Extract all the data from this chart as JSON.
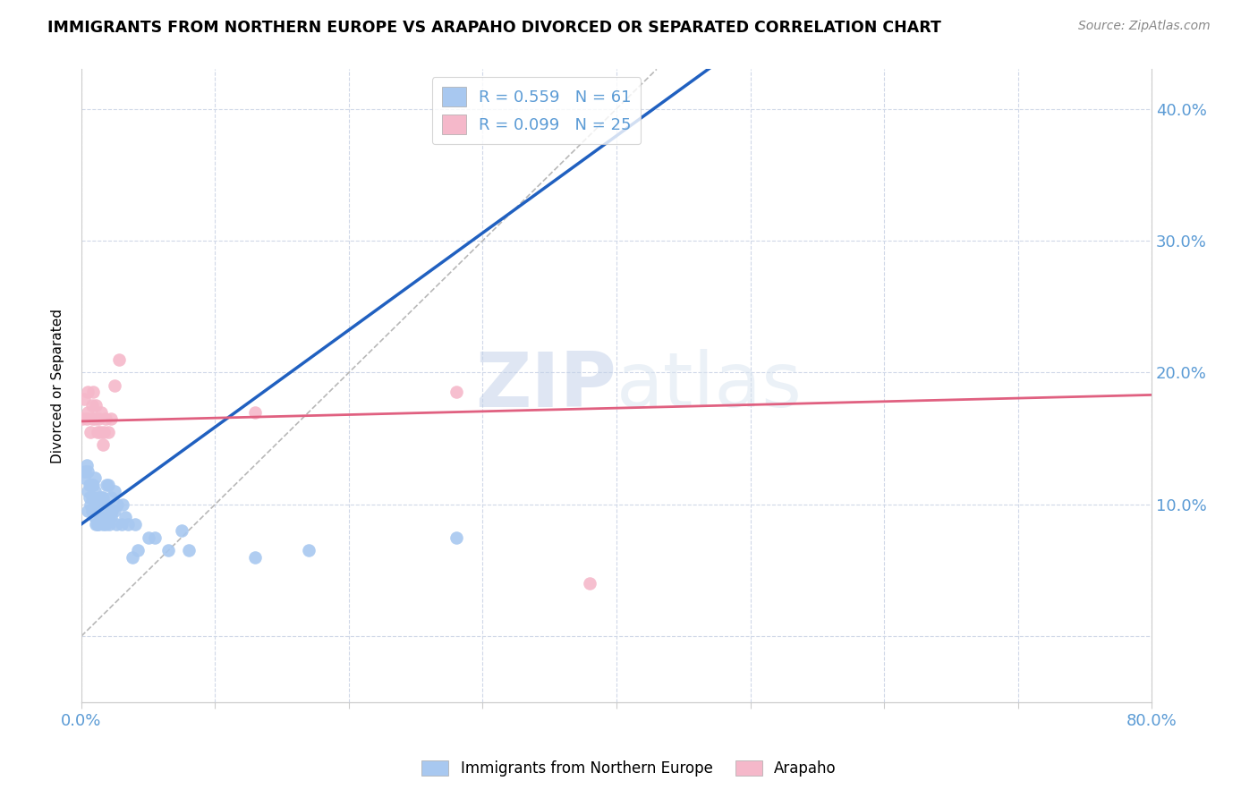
{
  "title": "IMMIGRANTS FROM NORTHERN EUROPE VS ARAPAHO DIVORCED OR SEPARATED CORRELATION CHART",
  "source": "Source: ZipAtlas.com",
  "ylabel": "Divorced or Separated",
  "xlim": [
    0.0,
    0.8
  ],
  "ylim": [
    -0.05,
    0.43
  ],
  "yticks": [
    0.0,
    0.1,
    0.2,
    0.3,
    0.4
  ],
  "xticks": [
    0.0,
    0.1,
    0.2,
    0.3,
    0.4,
    0.5,
    0.6,
    0.7,
    0.8
  ],
  "legend_blue_R": "R = 0.559",
  "legend_blue_N": "N = 61",
  "legend_pink_R": "R = 0.099",
  "legend_pink_N": "N = 25",
  "blue_color": "#a8c8f0",
  "pink_color": "#f5b8ca",
  "blue_line_color": "#2060c0",
  "pink_line_color": "#e06080",
  "diag_line_color": "#b8b8b8",
  "watermark_zip": "ZIP",
  "watermark_atlas": "atlas",
  "blue_scatter_x": [
    0.002,
    0.003,
    0.004,
    0.005,
    0.005,
    0.005,
    0.006,
    0.006,
    0.007,
    0.007,
    0.008,
    0.008,
    0.008,
    0.009,
    0.009,
    0.009,
    0.01,
    0.01,
    0.01,
    0.01,
    0.011,
    0.011,
    0.012,
    0.012,
    0.013,
    0.013,
    0.014,
    0.014,
    0.015,
    0.015,
    0.016,
    0.016,
    0.017,
    0.018,
    0.018,
    0.019,
    0.02,
    0.02,
    0.021,
    0.022,
    0.022,
    0.023,
    0.025,
    0.025,
    0.026,
    0.027,
    0.03,
    0.031,
    0.033,
    0.035,
    0.038,
    0.04,
    0.042,
    0.05,
    0.055,
    0.065,
    0.075,
    0.08,
    0.13,
    0.17,
    0.28
  ],
  "blue_scatter_y": [
    0.12,
    0.125,
    0.13,
    0.095,
    0.11,
    0.125,
    0.105,
    0.115,
    0.1,
    0.115,
    0.095,
    0.105,
    0.115,
    0.095,
    0.105,
    0.115,
    0.09,
    0.1,
    0.11,
    0.12,
    0.085,
    0.1,
    0.085,
    0.1,
    0.085,
    0.1,
    0.09,
    0.105,
    0.09,
    0.105,
    0.085,
    0.105,
    0.095,
    0.085,
    0.1,
    0.115,
    0.09,
    0.115,
    0.085,
    0.09,
    0.105,
    0.095,
    0.095,
    0.11,
    0.085,
    0.1,
    0.085,
    0.1,
    0.09,
    0.085,
    0.06,
    0.085,
    0.065,
    0.075,
    0.075,
    0.065,
    0.08,
    0.065,
    0.06,
    0.065,
    0.075
  ],
  "pink_scatter_x": [
    0.001,
    0.002,
    0.004,
    0.005,
    0.005,
    0.007,
    0.008,
    0.008,
    0.009,
    0.01,
    0.011,
    0.012,
    0.013,
    0.014,
    0.015,
    0.016,
    0.017,
    0.018,
    0.02,
    0.022,
    0.025,
    0.028,
    0.13,
    0.28,
    0.38
  ],
  "pink_scatter_y": [
    0.165,
    0.18,
    0.165,
    0.17,
    0.185,
    0.155,
    0.165,
    0.175,
    0.185,
    0.165,
    0.175,
    0.155,
    0.165,
    0.155,
    0.17,
    0.145,
    0.155,
    0.165,
    0.155,
    0.165,
    0.19,
    0.21,
    0.17,
    0.185,
    0.04
  ],
  "blue_line_x": [
    0.0,
    0.55
  ],
  "blue_line_y": [
    0.085,
    0.49
  ],
  "pink_line_x": [
    0.0,
    0.8
  ],
  "pink_line_y": [
    0.163,
    0.183
  ],
  "diag_line_x": [
    0.0,
    0.43
  ],
  "diag_line_y": [
    0.0,
    0.43
  ]
}
